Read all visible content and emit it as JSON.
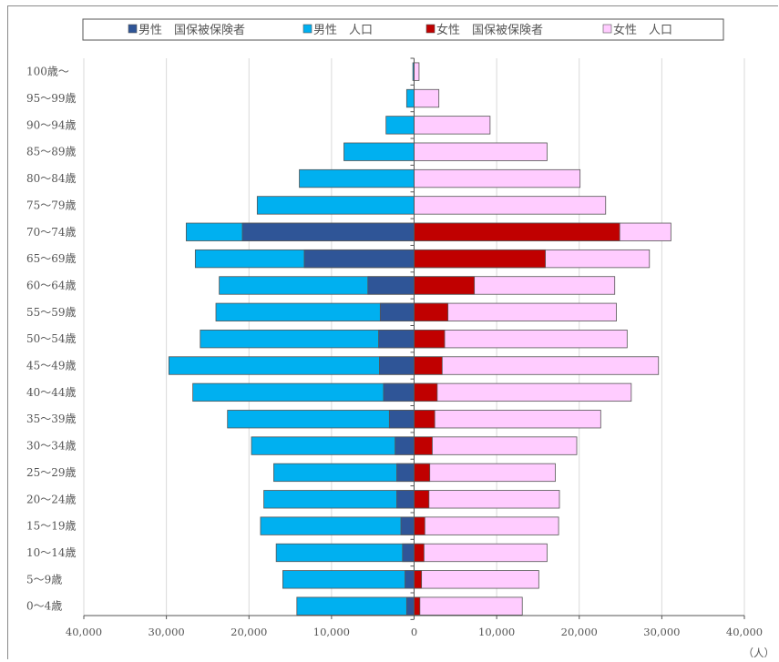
{
  "chart_data": {
    "type": "bar",
    "orientation": "horizontal",
    "layout": "population-pyramid",
    "title": "",
    "unit_label": "（人）",
    "xlim": [
      -40000,
      40000
    ],
    "x_ticks": [
      -40000,
      -30000,
      -20000,
      -10000,
      0,
      10000,
      20000,
      30000,
      40000
    ],
    "x_tick_labels": [
      "40,000",
      "30,000",
      "20,000",
      "10,000",
      "0",
      "10,000",
      "20,000",
      "30,000",
      "40,000"
    ],
    "grid": true,
    "legend_position": "top",
    "categories": [
      "100歳～",
      "95～99歳",
      "90～94歳",
      "85～89歳",
      "80～84歳",
      "75～79歳",
      "70～74歳",
      "65～69歳",
      "60～64歳",
      "55～59歳",
      "50～54歳",
      "45～49歳",
      "40～44歳",
      "35～39歳",
      "30～34歳",
      "25～29歳",
      "20～24歳",
      "15～19歳",
      "10～14歳",
      "5～9歳",
      "0～4歳"
    ],
    "series": [
      {
        "name": "男性　国保被保険者",
        "side": "left",
        "color": "#2f5597",
        "values": [
          0,
          0,
          0,
          0,
          0,
          0,
          20800,
          13300,
          5600,
          4100,
          4300,
          4200,
          3700,
          3000,
          2300,
          2100,
          2100,
          1600,
          1400,
          1100,
          900
        ]
      },
      {
        "name": "男性　人口",
        "side": "left",
        "color": "#00b0f0",
        "values": [
          150,
          900,
          3400,
          8500,
          13900,
          19000,
          27600,
          26500,
          23600,
          24000,
          25900,
          29700,
          26800,
          22600,
          19700,
          17000,
          18200,
          18600,
          16700,
          15900,
          14200
        ]
      },
      {
        "name": "女性　国保被保険者",
        "side": "right",
        "color": "#c00000",
        "values": [
          0,
          0,
          0,
          0,
          0,
          0,
          24900,
          15900,
          7300,
          4100,
          3700,
          3400,
          2800,
          2500,
          2200,
          1900,
          1800,
          1300,
          1200,
          900,
          700
        ]
      },
      {
        "name": "女性　人口",
        "side": "right",
        "color": "#ffccff",
        "values": [
          600,
          3000,
          9200,
          16100,
          20100,
          23200,
          31100,
          28500,
          24300,
          24500,
          25800,
          29600,
          26300,
          22600,
          19700,
          17100,
          17600,
          17500,
          16100,
          15100,
          13100
        ]
      }
    ]
  }
}
